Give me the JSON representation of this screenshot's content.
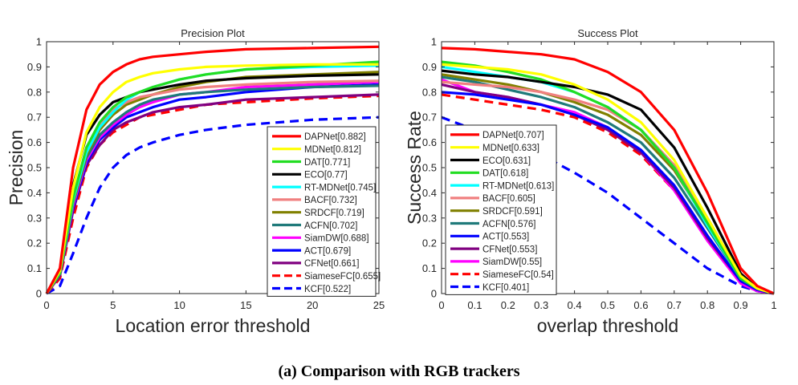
{
  "caption": "(a) Comparison with RGB trackers",
  "chart_data": [
    {
      "type": "line",
      "title": "Precision Plot",
      "xlabel": "Location error threshold",
      "ylabel": "Precision",
      "xlim": [
        0,
        25
      ],
      "ylim": [
        0,
        1
      ],
      "xticks": [
        "0",
        "5",
        "10",
        "15",
        "20",
        "25"
      ],
      "yticks": [
        "0",
        "0.1",
        "0.2",
        "0.3",
        "0.4",
        "0.5",
        "0.6",
        "0.7",
        "0.8",
        "0.9",
        "1"
      ],
      "grid": false,
      "legend_position": "bottom-right",
      "series": [
        {
          "name": "DAPNet[0.882]",
          "color": "#ff0000",
          "dashed": false,
          "x": [
            0,
            1,
            2,
            3,
            4,
            5,
            6,
            7,
            8,
            10,
            12,
            15,
            20,
            25
          ],
          "y": [
            0,
            0.1,
            0.5,
            0.73,
            0.83,
            0.88,
            0.91,
            0.93,
            0.94,
            0.95,
            0.96,
            0.97,
            0.975,
            0.98
          ]
        },
        {
          "name": "MDNet[0.812]",
          "color": "#ffff00",
          "dashed": false,
          "x": [
            0,
            1,
            2,
            3,
            4,
            5,
            6,
            7,
            8,
            10,
            12,
            15,
            20,
            25
          ],
          "y": [
            0,
            0.09,
            0.42,
            0.64,
            0.74,
            0.8,
            0.84,
            0.86,
            0.875,
            0.89,
            0.9,
            0.905,
            0.91,
            0.91
          ]
        },
        {
          "name": "DAT[0.771]",
          "color": "#22dd22",
          "dashed": false,
          "x": [
            0,
            1,
            2,
            3,
            4,
            5,
            6,
            7,
            8,
            10,
            12,
            15,
            20,
            25
          ],
          "y": [
            0,
            0.08,
            0.38,
            0.58,
            0.68,
            0.74,
            0.78,
            0.8,
            0.82,
            0.85,
            0.87,
            0.89,
            0.905,
            0.92
          ]
        },
        {
          "name": "ECO[0.77]",
          "color": "#000000",
          "dashed": false,
          "x": [
            0,
            1,
            2,
            3,
            4,
            5,
            6,
            7,
            8,
            10,
            12,
            15,
            20,
            25
          ],
          "y": [
            0,
            0.09,
            0.43,
            0.63,
            0.71,
            0.76,
            0.78,
            0.8,
            0.81,
            0.83,
            0.845,
            0.855,
            0.865,
            0.87
          ]
        },
        {
          "name": "RT-MDNet[0.745]",
          "color": "#00ffff",
          "dashed": false,
          "x": [
            0,
            1,
            2,
            3,
            4,
            5,
            6,
            7,
            8,
            10,
            12,
            15,
            20,
            25
          ],
          "y": [
            0,
            0.08,
            0.37,
            0.56,
            0.66,
            0.72,
            0.77,
            0.8,
            0.82,
            0.85,
            0.87,
            0.89,
            0.9,
            0.905
          ]
        },
        {
          "name": "BACF[0.732]",
          "color": "#f08080",
          "dashed": false,
          "x": [
            0,
            1,
            2,
            3,
            4,
            5,
            6,
            7,
            8,
            10,
            12,
            15,
            20,
            25
          ],
          "y": [
            0,
            0.08,
            0.38,
            0.57,
            0.67,
            0.73,
            0.76,
            0.78,
            0.79,
            0.81,
            0.82,
            0.83,
            0.84,
            0.845
          ]
        },
        {
          "name": "SRDCF[0.719]",
          "color": "#808000",
          "dashed": false,
          "x": [
            0,
            1,
            2,
            3,
            4,
            5,
            6,
            7,
            8,
            10,
            12,
            15,
            20,
            25
          ],
          "y": [
            0,
            0.08,
            0.36,
            0.55,
            0.65,
            0.71,
            0.75,
            0.77,
            0.79,
            0.82,
            0.84,
            0.86,
            0.87,
            0.88
          ]
        },
        {
          "name": "ACFN[0.702]",
          "color": "#1f7a7a",
          "dashed": false,
          "x": [
            0,
            1,
            2,
            3,
            4,
            5,
            6,
            7,
            8,
            10,
            12,
            15,
            20,
            25
          ],
          "y": [
            0,
            0.08,
            0.36,
            0.54,
            0.63,
            0.68,
            0.72,
            0.75,
            0.77,
            0.79,
            0.8,
            0.81,
            0.82,
            0.825
          ]
        },
        {
          "name": "SiamDW[0.688]",
          "color": "#ff00ff",
          "dashed": false,
          "x": [
            0,
            1,
            2,
            3,
            4,
            5,
            6,
            7,
            8,
            10,
            12,
            15,
            20,
            25
          ],
          "y": [
            0,
            0.08,
            0.35,
            0.53,
            0.62,
            0.67,
            0.71,
            0.74,
            0.76,
            0.79,
            0.8,
            0.82,
            0.83,
            0.84
          ]
        },
        {
          "name": "ACT[0.679]",
          "color": "#0000ff",
          "dashed": false,
          "x": [
            0,
            1,
            2,
            3,
            4,
            5,
            6,
            7,
            8,
            10,
            12,
            15,
            20,
            25
          ],
          "y": [
            0,
            0.08,
            0.34,
            0.52,
            0.61,
            0.66,
            0.7,
            0.72,
            0.74,
            0.77,
            0.78,
            0.8,
            0.82,
            0.83
          ]
        },
        {
          "name": "CFNet[0.661]",
          "color": "#800080",
          "dashed": false,
          "x": [
            0,
            1,
            2,
            3,
            4,
            5,
            6,
            7,
            8,
            10,
            12,
            15,
            20,
            25
          ],
          "y": [
            0,
            0.07,
            0.33,
            0.51,
            0.59,
            0.65,
            0.68,
            0.7,
            0.72,
            0.74,
            0.75,
            0.77,
            0.78,
            0.79
          ]
        },
        {
          "name": "SiameseFC[0.655]",
          "color": "#ff0000",
          "dashed": true,
          "x": [
            0,
            1,
            2,
            3,
            4,
            5,
            6,
            7,
            8,
            10,
            12,
            15,
            20,
            25
          ],
          "y": [
            0,
            0.06,
            0.3,
            0.5,
            0.59,
            0.64,
            0.67,
            0.7,
            0.71,
            0.73,
            0.75,
            0.76,
            0.775,
            0.785
          ]
        },
        {
          "name": "KCF[0.522]",
          "color": "#0000ff",
          "dashed": true,
          "x": [
            0,
            1,
            2,
            3,
            4,
            5,
            6,
            7,
            8,
            10,
            12,
            15,
            20,
            25
          ],
          "y": [
            0,
            0.03,
            0.16,
            0.3,
            0.42,
            0.5,
            0.55,
            0.58,
            0.6,
            0.63,
            0.65,
            0.67,
            0.69,
            0.7
          ]
        }
      ]
    },
    {
      "type": "line",
      "title": "Success Plot",
      "xlabel": "overlap threshold",
      "ylabel": "Success Rate",
      "xlim": [
        0,
        1
      ],
      "ylim": [
        0,
        1
      ],
      "xticks": [
        "0",
        "0.1",
        "0.2",
        "0.3",
        "0.4",
        "0.5",
        "0.6",
        "0.7",
        "0.8",
        "0.9",
        "1"
      ],
      "yticks": [
        "0",
        "0.1",
        "0.2",
        "0.3",
        "0.4",
        "0.5",
        "0.6",
        "0.7",
        "0.8",
        "0.9",
        "1"
      ],
      "grid": false,
      "legend_position": "bottom-left",
      "series": [
        {
          "name": "DAPNet[0.707]",
          "color": "#ff0000",
          "dashed": false,
          "x": [
            0,
            0.1,
            0.2,
            0.3,
            0.4,
            0.5,
            0.6,
            0.7,
            0.8,
            0.9,
            0.95,
            1
          ],
          "y": [
            0.975,
            0.97,
            0.96,
            0.95,
            0.93,
            0.88,
            0.8,
            0.65,
            0.4,
            0.1,
            0.03,
            0
          ]
        },
        {
          "name": "MDNet[0.633]",
          "color": "#ffff00",
          "dashed": false,
          "x": [
            0,
            0.1,
            0.2,
            0.3,
            0.4,
            0.5,
            0.6,
            0.7,
            0.8,
            0.9,
            0.95,
            1
          ],
          "y": [
            0.91,
            0.9,
            0.89,
            0.87,
            0.83,
            0.77,
            0.68,
            0.53,
            0.3,
            0.07,
            0.02,
            0
          ]
        },
        {
          "name": "ECO[0.631]",
          "color": "#000000",
          "dashed": false,
          "x": [
            0,
            0.1,
            0.2,
            0.3,
            0.4,
            0.5,
            0.6,
            0.7,
            0.8,
            0.9,
            0.95,
            1
          ],
          "y": [
            0.885,
            0.87,
            0.86,
            0.84,
            0.82,
            0.79,
            0.73,
            0.58,
            0.34,
            0.08,
            0.02,
            0
          ]
        },
        {
          "name": "DAT[0.618]",
          "color": "#22dd22",
          "dashed": false,
          "x": [
            0,
            0.1,
            0.2,
            0.3,
            0.4,
            0.5,
            0.6,
            0.7,
            0.8,
            0.9,
            0.95,
            1
          ],
          "y": [
            0.92,
            0.905,
            0.88,
            0.85,
            0.8,
            0.74,
            0.65,
            0.5,
            0.28,
            0.06,
            0.02,
            0
          ]
        },
        {
          "name": "RT-MDNet[0.613]",
          "color": "#00ffff",
          "dashed": false,
          "x": [
            0,
            0.1,
            0.2,
            0.3,
            0.4,
            0.5,
            0.6,
            0.7,
            0.8,
            0.9,
            0.95,
            1
          ],
          "y": [
            0.9,
            0.88,
            0.86,
            0.84,
            0.8,
            0.74,
            0.65,
            0.5,
            0.27,
            0.06,
            0.02,
            0
          ]
        },
        {
          "name": "BACF[0.605]",
          "color": "#f08080",
          "dashed": false,
          "x": [
            0,
            0.1,
            0.2,
            0.3,
            0.4,
            0.5,
            0.6,
            0.7,
            0.8,
            0.9,
            0.95,
            1
          ],
          "y": [
            0.84,
            0.83,
            0.82,
            0.8,
            0.77,
            0.73,
            0.65,
            0.51,
            0.3,
            0.07,
            0.02,
            0
          ]
        },
        {
          "name": "SRDCF[0.591]",
          "color": "#808000",
          "dashed": false,
          "x": [
            0,
            0.1,
            0.2,
            0.3,
            0.4,
            0.5,
            0.6,
            0.7,
            0.8,
            0.9,
            0.95,
            1
          ],
          "y": [
            0.87,
            0.85,
            0.83,
            0.8,
            0.76,
            0.71,
            0.63,
            0.49,
            0.28,
            0.06,
            0.02,
            0
          ]
        },
        {
          "name": "ACFN[0.576]",
          "color": "#1f7a7a",
          "dashed": false,
          "x": [
            0,
            0.1,
            0.2,
            0.3,
            0.4,
            0.5,
            0.6,
            0.7,
            0.8,
            0.9,
            0.95,
            1
          ],
          "y": [
            0.86,
            0.84,
            0.81,
            0.78,
            0.74,
            0.68,
            0.6,
            0.46,
            0.26,
            0.06,
            0.02,
            0
          ]
        },
        {
          "name": "ACT[0.553]",
          "color": "#0000ff",
          "dashed": false,
          "x": [
            0,
            0.1,
            0.2,
            0.3,
            0.4,
            0.5,
            0.6,
            0.7,
            0.8,
            0.9,
            0.95,
            1
          ],
          "y": [
            0.8,
            0.79,
            0.77,
            0.75,
            0.71,
            0.66,
            0.57,
            0.43,
            0.23,
            0.05,
            0.015,
            0
          ]
        },
        {
          "name": "CFNet[0.553]",
          "color": "#800080",
          "dashed": false,
          "x": [
            0,
            0.1,
            0.2,
            0.3,
            0.4,
            0.5,
            0.6,
            0.7,
            0.8,
            0.9,
            0.95,
            1
          ],
          "y": [
            0.83,
            0.8,
            0.78,
            0.75,
            0.71,
            0.65,
            0.56,
            0.42,
            0.22,
            0.05,
            0.015,
            0
          ]
        },
        {
          "name": "SiamDW[0.55]",
          "color": "#ff00ff",
          "dashed": false,
          "x": [
            0,
            0.1,
            0.2,
            0.3,
            0.4,
            0.5,
            0.6,
            0.7,
            0.8,
            0.9,
            0.95,
            1
          ],
          "y": [
            0.85,
            0.8,
            0.78,
            0.75,
            0.72,
            0.66,
            0.56,
            0.41,
            0.21,
            0.04,
            0.01,
            0
          ]
        },
        {
          "name": "SiameseFC[0.54]",
          "color": "#ff0000",
          "dashed": true,
          "x": [
            0,
            0.1,
            0.2,
            0.3,
            0.4,
            0.5,
            0.6,
            0.7,
            0.8,
            0.9,
            0.95,
            1
          ],
          "y": [
            0.79,
            0.77,
            0.75,
            0.73,
            0.7,
            0.64,
            0.55,
            0.41,
            0.22,
            0.05,
            0.015,
            0
          ]
        },
        {
          "name": "KCF[0.401]",
          "color": "#0000ff",
          "dashed": true,
          "x": [
            0,
            0.1,
            0.2,
            0.3,
            0.4,
            0.5,
            0.6,
            0.7,
            0.8,
            0.9,
            0.95,
            1
          ],
          "y": [
            0.7,
            0.65,
            0.6,
            0.55,
            0.48,
            0.4,
            0.3,
            0.2,
            0.1,
            0.03,
            0.01,
            0
          ]
        }
      ]
    }
  ]
}
